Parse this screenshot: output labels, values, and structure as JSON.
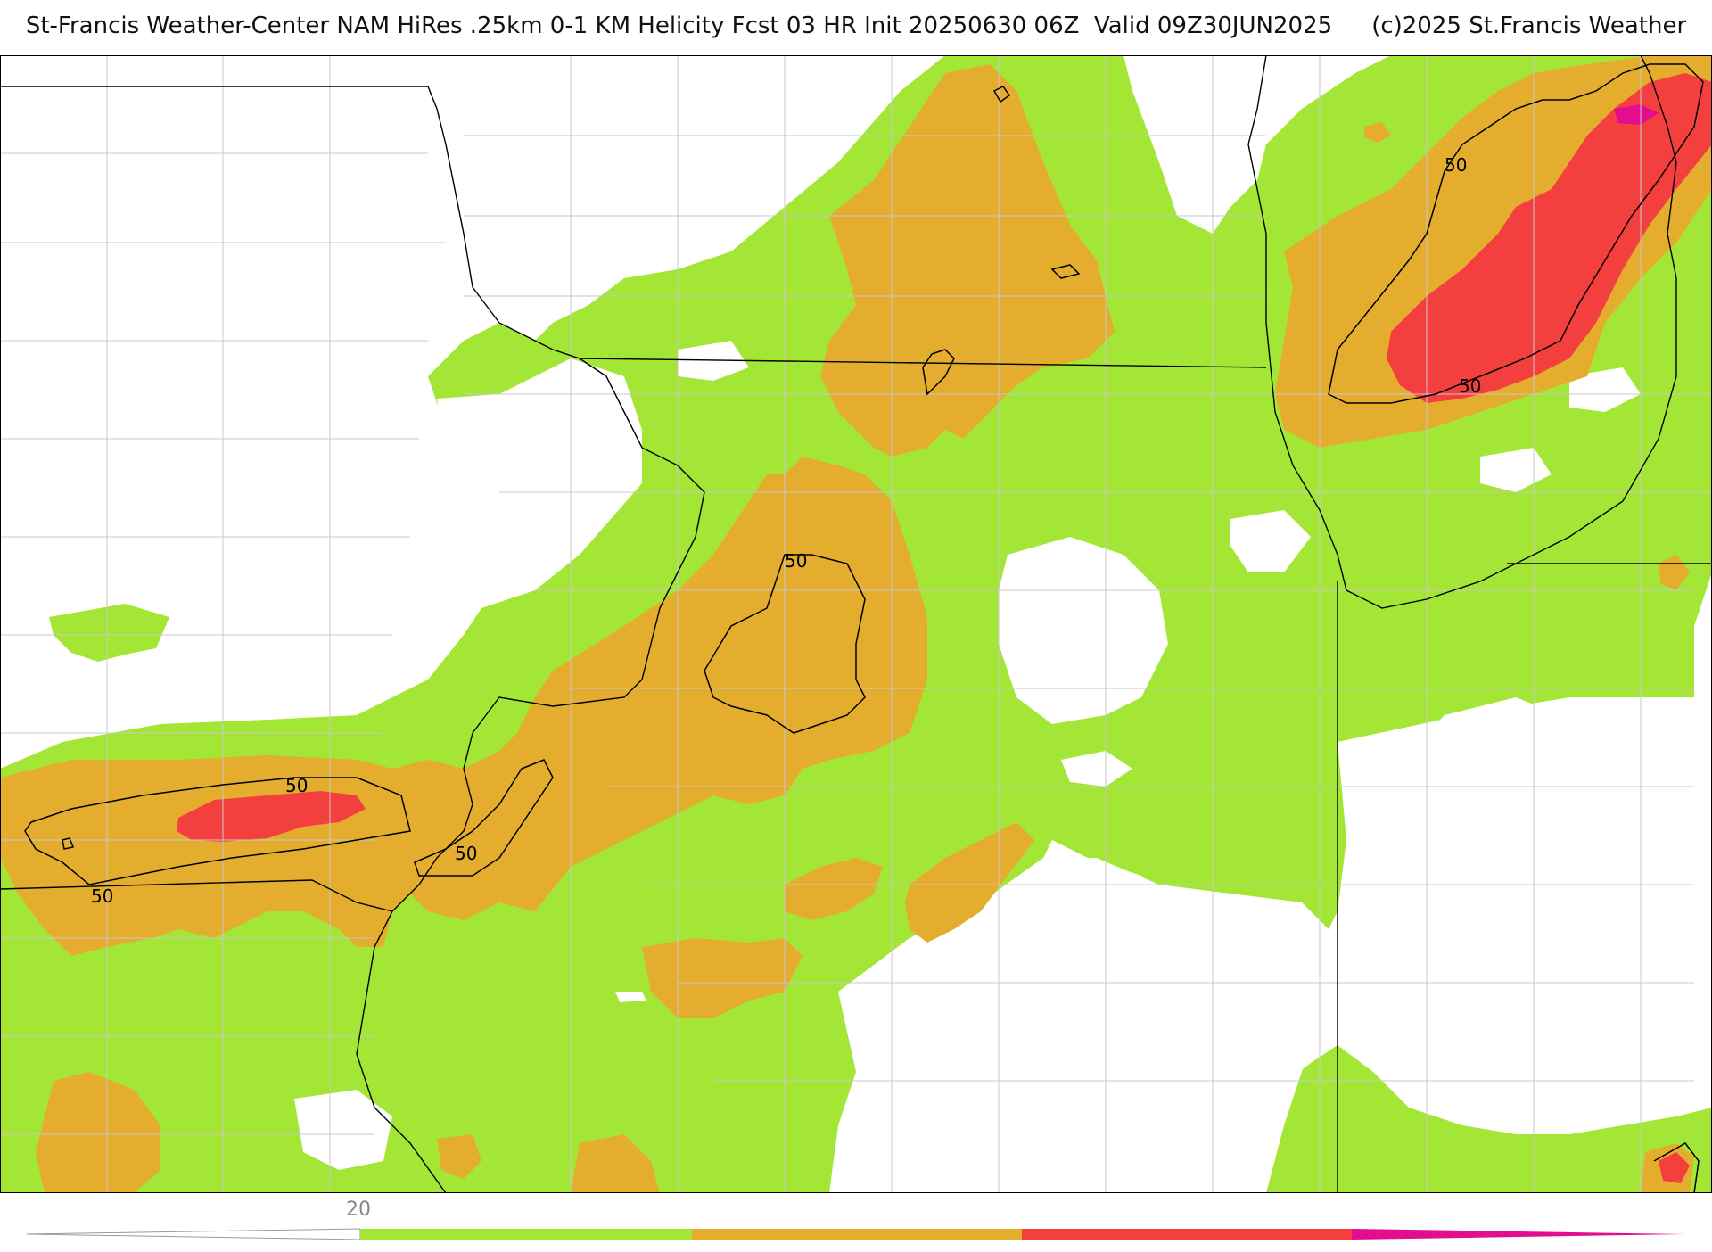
{
  "header": {
    "title": "St-Francis Weather-Center NAM HiRes .25km 0-1 KM Helicity Fcst 03 HR Init 20250630 06Z  Valid 09Z30JUN2025",
    "copyright": "(c)2025 St.Francis Weather"
  },
  "map": {
    "contour_label": "50",
    "fill_colors": {
      "band_20_50": "#a3e635",
      "band_50_100": "#e4ad2e",
      "band_100_150": "#f43f3f",
      "band_150_plus": "#e20e8f"
    },
    "boundary_color": "#000000",
    "county_color": "#c8c8c8"
  },
  "colorbar": {
    "tick_label": "20",
    "colors": [
      "#a3e635",
      "#e4ad2e",
      "#f43f3f",
      "#e20e8f"
    ]
  }
}
